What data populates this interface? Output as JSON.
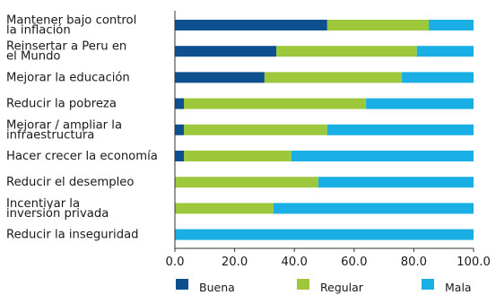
{
  "chart_data": {
    "type": "bar",
    "orientation": "horizontal",
    "stacked": true,
    "categories": [
      [
        "Mantener bajo control",
        "la inflación"
      ],
      [
        "Reinsertar a Peru en",
        "el Mundo"
      ],
      [
        "Mejorar la educación"
      ],
      [
        "Reducir la pobreza"
      ],
      [
        "Mejorar / ampliar la",
        "infraestructura"
      ],
      [
        "Hacer crecer la economía"
      ],
      [
        "Reducir el desempleo"
      ],
      [
        "Incentivar la",
        "inversión privada"
      ],
      [
        "Reducir la inseguridad"
      ]
    ],
    "series": [
      {
        "name": "Buena",
        "color": "#0d4f8f",
        "values": [
          51,
          34,
          30,
          3,
          3,
          3,
          0,
          0,
          0
        ]
      },
      {
        "name": "Regular",
        "color": "#9dc83c",
        "values": [
          34,
          47,
          46,
          61,
          48,
          36,
          48,
          33,
          0
        ]
      },
      {
        "name": "Mala",
        "color": "#19aee4",
        "values": [
          15,
          19,
          24,
          36,
          49,
          61,
          52,
          67,
          100
        ]
      }
    ],
    "xlim": [
      0,
      100
    ],
    "xticks": [
      "0.0",
      "20.0",
      "40.0",
      "60.0",
      "80.0",
      "100.0"
    ],
    "grid": false,
    "legend_position": "bottom"
  }
}
